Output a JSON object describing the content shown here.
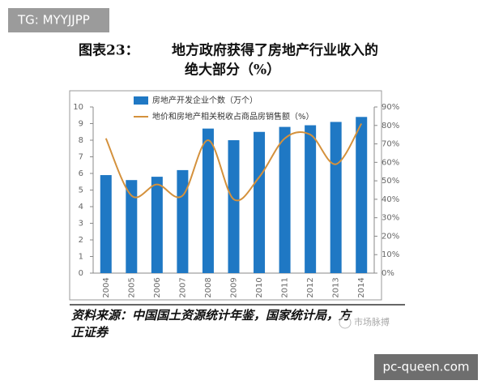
{
  "badge": "TG: MYYJJPP",
  "chart_data": {
    "type": "bar-line",
    "figure_label": "图表23：",
    "title_lines": [
      "地方政府获得了房地产行业收入的",
      "绝大部分（%）"
    ],
    "categories": [
      "2004",
      "2005",
      "2006",
      "2007",
      "2008",
      "2009",
      "2010",
      "2011",
      "2012",
      "2013",
      "2014"
    ],
    "series": [
      {
        "name": "房地产开发企业个数（万个）",
        "type": "bar",
        "color": "#1f78c4",
        "values": [
          5.9,
          5.6,
          5.8,
          6.2,
          8.7,
          8.0,
          8.5,
          8.8,
          8.9,
          9.1,
          9.4
        ]
      },
      {
        "name": "地价和房地产相关税收占商品房销售额（%）",
        "type": "line",
        "axis": "y2",
        "color": "#d4913c",
        "values": [
          73,
          42,
          48,
          42,
          72,
          40,
          52,
          73,
          75,
          59,
          81
        ]
      }
    ],
    "ylim": [
      0,
      10
    ],
    "yticks": [
      0,
      1,
      2,
      3,
      4,
      5,
      6,
      7,
      8,
      9,
      10
    ],
    "y2lim": [
      0,
      90
    ],
    "y2ticks": [
      {
        "value": 0,
        "label": "0%"
      },
      {
        "value": 10,
        "label": "10%"
      },
      {
        "value": 20,
        "label": "20%"
      },
      {
        "value": 30,
        "label": "30%"
      },
      {
        "value": 40,
        "label": "40%"
      },
      {
        "value": 50,
        "label": "50%"
      },
      {
        "value": 60,
        "label": "60%"
      },
      {
        "value": 70,
        "label": "70%"
      },
      {
        "value": 80,
        "label": "80%"
      },
      {
        "value": 90,
        "label": "90%"
      }
    ],
    "legend": "top-left"
  },
  "source_lines": [
    "资料来源：中国国土资源统计年鉴，国家统计局，方",
    "正证券"
  ],
  "watermark": "市场脉搏",
  "site": "pc-queen.com"
}
